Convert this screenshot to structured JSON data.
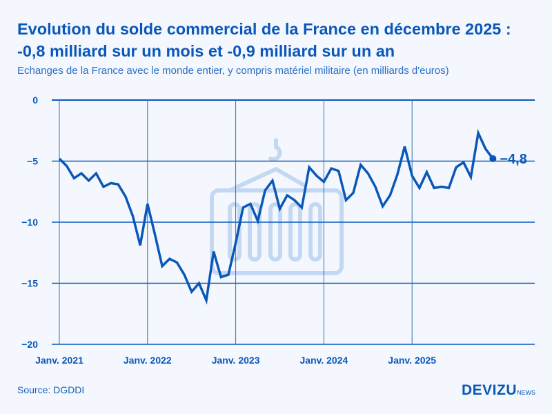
{
  "chart_data": {
    "type": "line",
    "title": "Evolution du solde commercial de la France en décembre 2025 : -0,8 milliard sur un mois et -0,9 milliard sur un an",
    "subtitle": "Echanges de la France avec le monde entier, y compris matériel militaire (en milliards d'euros)",
    "x_start": "2021-01",
    "x_end": "2025-12",
    "x_tick_labels": [
      "Janv. 2021",
      "Janv. 2022",
      "Janv. 2023",
      "Janv. 2024",
      "Janv. 2025"
    ],
    "y_tick_labels": [
      "0",
      "−5",
      "−10",
      "−15",
      "−20"
    ],
    "y_ticks": [
      0,
      -5,
      -10,
      -15,
      -20
    ],
    "ylim": [
      -20,
      0
    ],
    "grid": "vertical lines at each January",
    "color": "#0a57b8",
    "values": [
      -4.8,
      -5.4,
      -6.4,
      -6.0,
      -6.6,
      -6.0,
      -7.1,
      -6.8,
      -6.9,
      -7.9,
      -9.5,
      -11.9,
      -8.5,
      -11.0,
      -13.6,
      -13.0,
      -13.3,
      -14.3,
      -15.7,
      -15.0,
      -16.4,
      -12.4,
      -14.5,
      -14.3,
      -11.7,
      -8.8,
      -8.5,
      -9.9,
      -7.4,
      -6.6,
      -8.9,
      -7.8,
      -8.2,
      -8.8,
      -5.5,
      -6.2,
      -6.7,
      -5.6,
      -5.8,
      -8.2,
      -7.6,
      -5.3,
      -6.0,
      -7.1,
      -8.7,
      -7.8,
      -6.1,
      -3.8,
      -6.2,
      -7.2,
      -5.9,
      -7.2,
      -7.1,
      -7.2,
      -5.5,
      -5.1,
      -6.3,
      -2.7,
      -4.0,
      -4.8
    ],
    "last_value_label": "−4,8"
  },
  "source": "Source: DGDDI",
  "logo": {
    "main": "DEVIZU",
    "suffix": "NEWS"
  }
}
